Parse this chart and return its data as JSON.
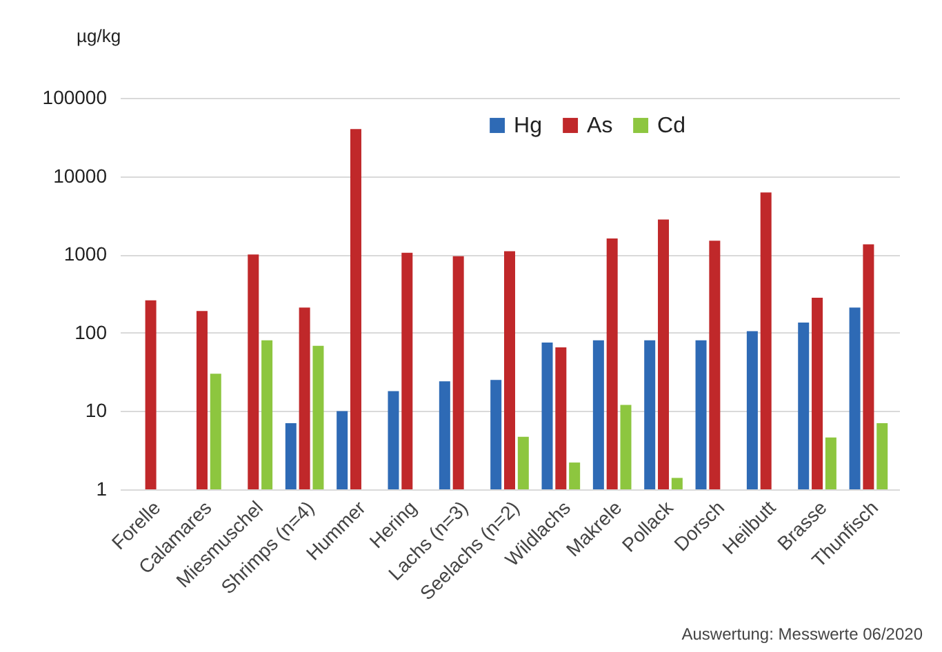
{
  "chart_data": {
    "type": "bar",
    "ylabel": "µg/kg",
    "categories": [
      "Forelle",
      "Calamares",
      "Miesmuschel",
      "Shrimps (n=4)",
      "Hummer",
      "Hering",
      "Lachs (n=3)",
      "Seelachs (n=2)",
      "Wildlachs",
      "Makrele",
      "Pollack",
      "Dorsch",
      "Heilbutt",
      "Brasse",
      "Thunfisch"
    ],
    "series": [
      {
        "name": "Hg",
        "color": "#2e6ab5",
        "values": [
          null,
          null,
          null,
          7,
          10,
          18,
          24,
          25,
          75,
          80,
          80,
          80,
          105,
          135,
          210
        ]
      },
      {
        "name": "As",
        "color": "#c0282a",
        "values": [
          260,
          190,
          1000,
          210,
          40000,
          1050,
          950,
          1100,
          65,
          1600,
          2800,
          1500,
          6200,
          280,
          1350
        ]
      },
      {
        "name": "Cd",
        "color": "#8dc63f",
        "values": [
          null,
          30,
          80,
          68,
          null,
          null,
          null,
          4.7,
          2.2,
          12,
          1.4,
          null,
          null,
          4.6,
          7
        ]
      }
    ],
    "log": true,
    "ylim": [
      1,
      100000
    ],
    "yticks": [
      1,
      10,
      100,
      1000,
      10000,
      100000
    ],
    "grid": "y",
    "legend": "top",
    "annotations": [
      "Auswertung: Messwerte 06/2020"
    ]
  }
}
